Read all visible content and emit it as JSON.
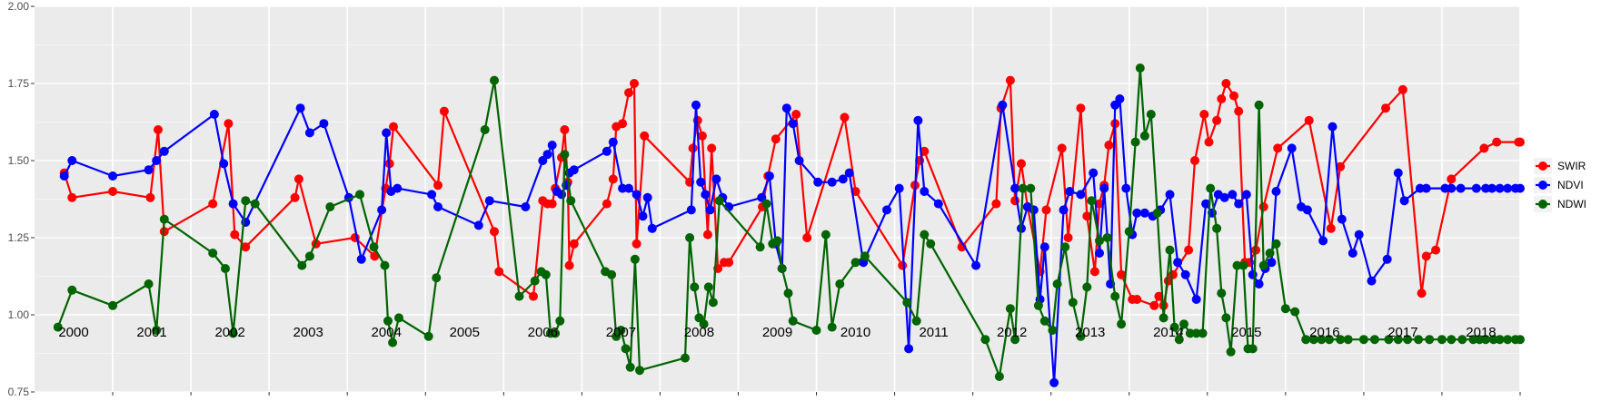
{
  "chart_data": {
    "type": "line",
    "title": "",
    "xlabel": "",
    "ylabel": "",
    "ylim": [
      0.75,
      2.0
    ],
    "xlim": [
      2000.0,
      2019.0
    ],
    "y_ticks": [
      "0.75",
      "1.00",
      "1.25",
      "1.50",
      "1.75",
      "2.00"
    ],
    "year_labels": [
      "2000",
      "2001",
      "2002",
      "2003",
      "2004",
      "2005",
      "2006",
      "2007",
      "2008",
      "2009",
      "2010",
      "2011",
      "2012",
      "2013",
      "2014",
      "2015",
      "2016",
      "2017",
      "2018"
    ],
    "grid": true,
    "legend_position": "right",
    "series": [
      {
        "name": "SWIR",
        "color": "#ff0000",
        "x": [
          2000.38,
          2000.48,
          2001.0,
          2001.48,
          2001.58,
          2001.66,
          2002.28,
          2002.48,
          2002.56,
          2002.7,
          2003.33,
          2003.38,
          2003.6,
          2004.1,
          2004.35,
          2004.49,
          2004.54,
          2004.59,
          2005.16,
          2005.24,
          2005.88,
          2005.94,
          2006.38,
          2006.5,
          2006.56,
          2006.62,
          2006.66,
          2006.74,
          2006.78,
          2006.82,
          2006.84,
          2006.9,
          2007.32,
          2007.4,
          2007.44,
          2007.52,
          2007.6,
          2007.67,
          2007.7,
          2007.8,
          2008.38,
          2008.42,
          2008.48,
          2008.54,
          2008.61,
          2008.66,
          2008.74,
          2008.82,
          2008.88,
          2009.31,
          2009.38,
          2009.48,
          2009.74,
          2009.88,
          2010.36,
          2010.5,
          2011.1,
          2011.26,
          2011.32,
          2011.38,
          2011.86,
          2012.3,
          2012.36,
          2012.48,
          2012.54,
          2012.62,
          2012.7,
          2012.86,
          2012.94,
          2013.14,
          2013.22,
          2013.38,
          2013.46,
          2013.56,
          2013.62,
          2013.68,
          2013.74,
          2013.82,
          2013.9,
          2014.04,
          2014.1,
          2014.32,
          2014.38,
          2014.44,
          2014.5,
          2014.56,
          2014.76,
          2014.84,
          2014.96,
          2015.02,
          2015.12,
          2015.18,
          2015.24,
          2015.34,
          2015.4,
          2015.48,
          2015.54,
          2015.62,
          2015.72,
          2015.9,
          2016.3,
          2016.58,
          2016.7,
          2017.28,
          2017.5,
          2017.74,
          2017.8,
          2017.92,
          2018.12,
          2018.54,
          2018.7,
          2018.98,
          2019.0
        ],
        "y": [
          1.46,
          1.38,
          1.4,
          1.38,
          1.6,
          1.27,
          1.36,
          1.62,
          1.26,
          1.22,
          1.38,
          1.44,
          1.23,
          1.25,
          1.19,
          1.41,
          1.49,
          1.61,
          1.42,
          1.66,
          1.27,
          1.14,
          1.06,
          1.37,
          1.36,
          1.36,
          1.41,
          1.51,
          1.6,
          1.43,
          1.16,
          1.23,
          1.36,
          1.44,
          1.61,
          1.62,
          1.72,
          1.75,
          1.23,
          1.58,
          1.43,
          1.54,
          1.63,
          1.58,
          1.26,
          1.54,
          1.15,
          1.17,
          1.17,
          1.35,
          1.45,
          1.57,
          1.65,
          1.25,
          1.64,
          1.4,
          1.16,
          1.42,
          1.5,
          1.53,
          1.22,
          1.36,
          1.67,
          1.76,
          1.37,
          1.49,
          1.35,
          1.14,
          1.34,
          1.54,
          1.25,
          1.67,
          1.32,
          1.14,
          1.36,
          1.42,
          1.55,
          1.62,
          1.13,
          1.05,
          1.05,
          1.03,
          1.06,
          1.03,
          1.11,
          1.13,
          1.21,
          1.5,
          1.65,
          1.56,
          1.63,
          1.7,
          1.75,
          1.71,
          1.66,
          1.17,
          1.17,
          1.21,
          1.35,
          1.54,
          1.63,
          1.28,
          1.48,
          1.67,
          1.73,
          1.07,
          1.19,
          1.21,
          1.44,
          1.54,
          1.56,
          1.56,
          1.56
        ]
      },
      {
        "name": "NDVI",
        "color": "#0000ff",
        "x": [
          2000.38,
          2000.48,
          2001.0,
          2001.46,
          2001.56,
          2001.66,
          2002.3,
          2002.42,
          2002.54,
          2002.7,
          2003.4,
          2003.52,
          2003.7,
          2004.02,
          2004.18,
          2004.44,
          2004.5,
          2004.56,
          2004.64,
          2005.08,
          2005.16,
          2005.68,
          2005.82,
          2006.28,
          2006.5,
          2006.56,
          2006.62,
          2006.68,
          2006.74,
          2006.8,
          2006.84,
          2006.9,
          2007.32,
          2007.4,
          2007.52,
          2007.6,
          2007.7,
          2007.78,
          2007.84,
          2007.9,
          2008.4,
          2008.46,
          2008.52,
          2008.58,
          2008.64,
          2008.72,
          2008.8,
          2008.88,
          2009.3,
          2009.4,
          2009.48,
          2009.56,
          2009.62,
          2009.7,
          2009.78,
          2010.02,
          2010.2,
          2010.34,
          2010.42,
          2010.6,
          2010.9,
          2011.06,
          2011.18,
          2011.3,
          2011.38,
          2011.56,
          2012.04,
          2012.38,
          2012.54,
          2012.62,
          2012.7,
          2012.78,
          2012.86,
          2012.92,
          2013.04,
          2013.16,
          2013.24,
          2013.38,
          2013.54,
          2013.62,
          2013.68,
          2013.76,
          2013.82,
          2013.88,
          2013.96,
          2014.04,
          2014.1,
          2014.2,
          2014.3,
          2014.4,
          2014.52,
          2014.62,
          2014.72,
          2014.86,
          2014.98,
          2015.06,
          2015.14,
          2015.22,
          2015.32,
          2015.4,
          2015.5,
          2015.58,
          2015.66,
          2015.74,
          2015.82,
          2015.88,
          2016.08,
          2016.2,
          2016.28,
          2016.48,
          2016.6,
          2016.72,
          2016.86,
          2016.94,
          2017.1,
          2017.3,
          2017.44,
          2017.52,
          2017.72,
          2017.8,
          2018.04,
          2018.12,
          2018.24,
          2018.44,
          2018.56,
          2018.64,
          2018.74,
          2018.84,
          2018.94,
          2019.0
        ],
        "y": [
          1.45,
          1.5,
          1.45,
          1.47,
          1.5,
          1.53,
          1.65,
          1.49,
          1.36,
          1.3,
          1.67,
          1.59,
          1.62,
          1.38,
          1.18,
          1.34,
          1.59,
          1.4,
          1.41,
          1.39,
          1.35,
          1.29,
          1.37,
          1.35,
          1.5,
          1.52,
          1.55,
          1.4,
          1.39,
          1.42,
          1.46,
          1.47,
          1.53,
          1.56,
          1.41,
          1.41,
          1.39,
          1.32,
          1.38,
          1.28,
          1.34,
          1.68,
          1.43,
          1.39,
          1.34,
          1.44,
          1.38,
          1.35,
          1.38,
          1.45,
          1.23,
          1.15,
          1.67,
          1.62,
          1.5,
          1.43,
          1.43,
          1.44,
          1.46,
          1.17,
          1.34,
          1.41,
          0.89,
          1.63,
          1.4,
          1.36,
          1.16,
          1.68,
          1.41,
          1.28,
          1.35,
          1.34,
          1.05,
          1.22,
          0.78,
          1.34,
          1.4,
          1.39,
          1.46,
          1.2,
          1.41,
          1.1,
          1.68,
          1.7,
          1.41,
          1.26,
          1.33,
          1.33,
          1.32,
          1.34,
          1.39,
          1.17,
          1.13,
          1.05,
          1.36,
          1.33,
          1.39,
          1.38,
          1.39,
          1.36,
          1.39,
          1.13,
          1.1,
          1.15,
          1.17,
          1.4,
          1.54,
          1.35,
          1.34,
          1.24,
          1.61,
          1.31,
          1.2,
          1.26,
          1.11,
          1.18,
          1.46,
          1.37,
          1.41,
          1.41,
          1.41,
          1.41,
          1.41,
          1.41,
          1.41,
          1.41,
          1.41,
          1.41,
          1.41,
          1.41
        ]
      },
      {
        "name": "NDWI",
        "color": "#006400",
        "x": [
          2000.3,
          2000.48,
          2001.0,
          2001.46,
          2001.56,
          2001.66,
          2002.28,
          2002.44,
          2002.54,
          2002.7,
          2002.82,
          2003.42,
          2003.52,
          2003.78,
          2004.16,
          2004.34,
          2004.48,
          2004.52,
          2004.58,
          2004.66,
          2005.04,
          2005.14,
          2005.76,
          2005.88,
          2006.2,
          2006.4,
          2006.48,
          2006.54,
          2006.6,
          2006.66,
          2006.72,
          2006.78,
          2006.86,
          2007.3,
          2007.38,
          2007.44,
          2007.5,
          2007.56,
          2007.62,
          2007.68,
          2007.74,
          2008.32,
          2008.38,
          2008.44,
          2008.5,
          2008.56,
          2008.62,
          2008.68,
          2008.76,
          2009.28,
          2009.36,
          2009.44,
          2009.5,
          2009.56,
          2009.64,
          2009.7,
          2010.0,
          2010.12,
          2010.2,
          2010.3,
          2010.5,
          2010.62,
          2011.16,
          2011.28,
          2011.38,
          2011.46,
          2012.16,
          2012.34,
          2012.48,
          2012.54,
          2012.64,
          2012.74,
          2012.84,
          2012.92,
          2013.02,
          2013.08,
          2013.18,
          2013.28,
          2013.38,
          2013.46,
          2013.52,
          2013.62,
          2013.72,
          2013.82,
          2013.9,
          2014.0,
          2014.08,
          2014.14,
          2014.2,
          2014.28,
          2014.36,
          2014.44,
          2014.52,
          2014.58,
          2014.64,
          2014.7,
          2014.78,
          2014.86,
          2014.94,
          2015.04,
          2015.12,
          2015.18,
          2015.24,
          2015.3,
          2015.38,
          2015.46,
          2015.52,
          2015.58,
          2015.66,
          2015.72,
          2015.8,
          2015.88,
          2016.0,
          2016.12,
          2016.26,
          2016.36,
          2016.46,
          2016.56,
          2016.7,
          2016.8,
          2017.0,
          2017.14,
          2017.32,
          2017.44,
          2017.56,
          2017.7,
          2017.84,
          2018.0,
          2018.12,
          2018.26,
          2018.4,
          2018.48,
          2018.56,
          2018.66,
          2018.74,
          2018.84,
          2018.94,
          2019.0
        ],
        "y": [
          0.96,
          1.08,
          1.03,
          1.1,
          0.95,
          1.31,
          1.2,
          1.15,
          0.94,
          1.37,
          1.36,
          1.16,
          1.19,
          1.35,
          1.39,
          1.22,
          1.16,
          0.98,
          0.91,
          0.99,
          0.93,
          1.12,
          1.6,
          1.76,
          1.06,
          1.11,
          1.14,
          1.13,
          0.94,
          0.94,
          0.98,
          1.52,
          1.37,
          1.14,
          1.13,
          0.93,
          0.95,
          0.89,
          0.83,
          1.18,
          0.82,
          0.86,
          1.25,
          1.09,
          0.99,
          0.97,
          1.09,
          1.04,
          1.37,
          1.22,
          1.36,
          1.23,
          1.24,
          1.15,
          1.07,
          0.98,
          0.95,
          1.26,
          0.96,
          1.1,
          1.17,
          1.19,
          1.04,
          0.98,
          1.26,
          1.23,
          0.92,
          0.8,
          1.02,
          0.92,
          1.41,
          1.41,
          1.03,
          0.98,
          0.95,
          1.1,
          1.22,
          1.04,
          0.93,
          1.09,
          1.37,
          1.24,
          1.25,
          1.06,
          0.97,
          1.27,
          1.56,
          1.8,
          1.58,
          1.65,
          1.33,
          0.99,
          1.21,
          0.96,
          0.92,
          0.97,
          0.94,
          0.94,
          0.94,
          1.41,
          1.28,
          1.07,
          0.99,
          0.88,
          1.16,
          1.16,
          0.89,
          0.89,
          1.68,
          1.16,
          1.2,
          1.23,
          1.02,
          1.01,
          0.92,
          0.92,
          0.92,
          0.92,
          0.92,
          0.92,
          0.92,
          0.92,
          0.92,
          0.92,
          0.92,
          0.92,
          0.92,
          0.92,
          0.92,
          0.92,
          0.92,
          0.92,
          0.92,
          0.92,
          0.92,
          0.92,
          0.92,
          0.92
        ]
      }
    ]
  }
}
